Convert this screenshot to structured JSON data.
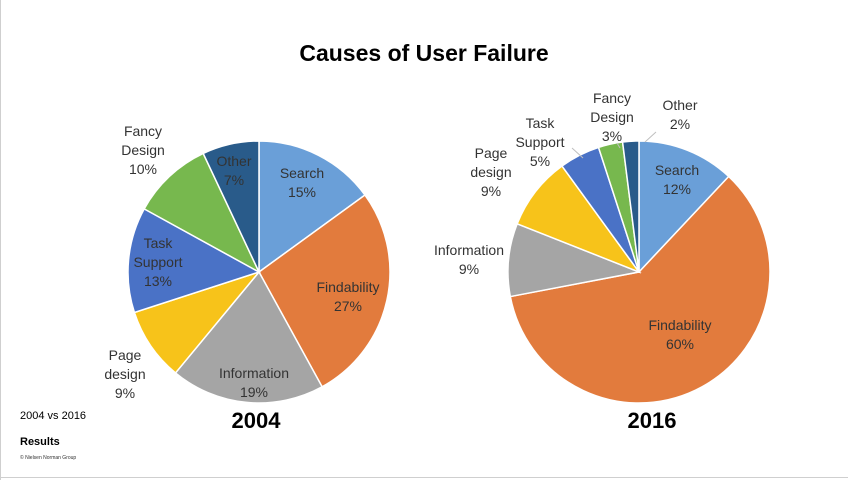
{
  "title": "Causes of User Failure",
  "footer": {
    "subtitle": "2004 vs 2016",
    "section": "Results",
    "copyright": "© Nielsen Norman Group"
  },
  "chart_data": [
    {
      "type": "pie",
      "title": "2004",
      "slices": [
        {
          "label": "Search",
          "value": 15,
          "color": "#6a9fd8"
        },
        {
          "label": "Findability",
          "value": 27,
          "color": "#e27b3d"
        },
        {
          "label": "Information",
          "value": 19,
          "color": "#a5a5a5"
        },
        {
          "label": "Page design",
          "value": 9,
          "color": "#f7c31a"
        },
        {
          "label": "Task Support",
          "value": 13,
          "color": "#4a72c6"
        },
        {
          "label": "Fancy Design",
          "value": 10,
          "color": "#77b84e"
        },
        {
          "label": "Other",
          "value": 7,
          "color": "#295b8a"
        }
      ]
    },
    {
      "type": "pie",
      "title": "2016",
      "slices": [
        {
          "label": "Search",
          "value": 12,
          "color": "#6a9fd8"
        },
        {
          "label": "Findability",
          "value": 60,
          "color": "#e27b3d"
        },
        {
          "label": "Information",
          "value": 9,
          "color": "#a5a5a5"
        },
        {
          "label": "Page design",
          "value": 9,
          "color": "#f7c31a"
        },
        {
          "label": "Task Support",
          "value": 5,
          "color": "#4a72c6"
        },
        {
          "label": "Fancy Design",
          "value": 3,
          "color": "#77b84e"
        },
        {
          "label": "Other",
          "value": 2,
          "color": "#295b8a"
        }
      ]
    }
  ]
}
